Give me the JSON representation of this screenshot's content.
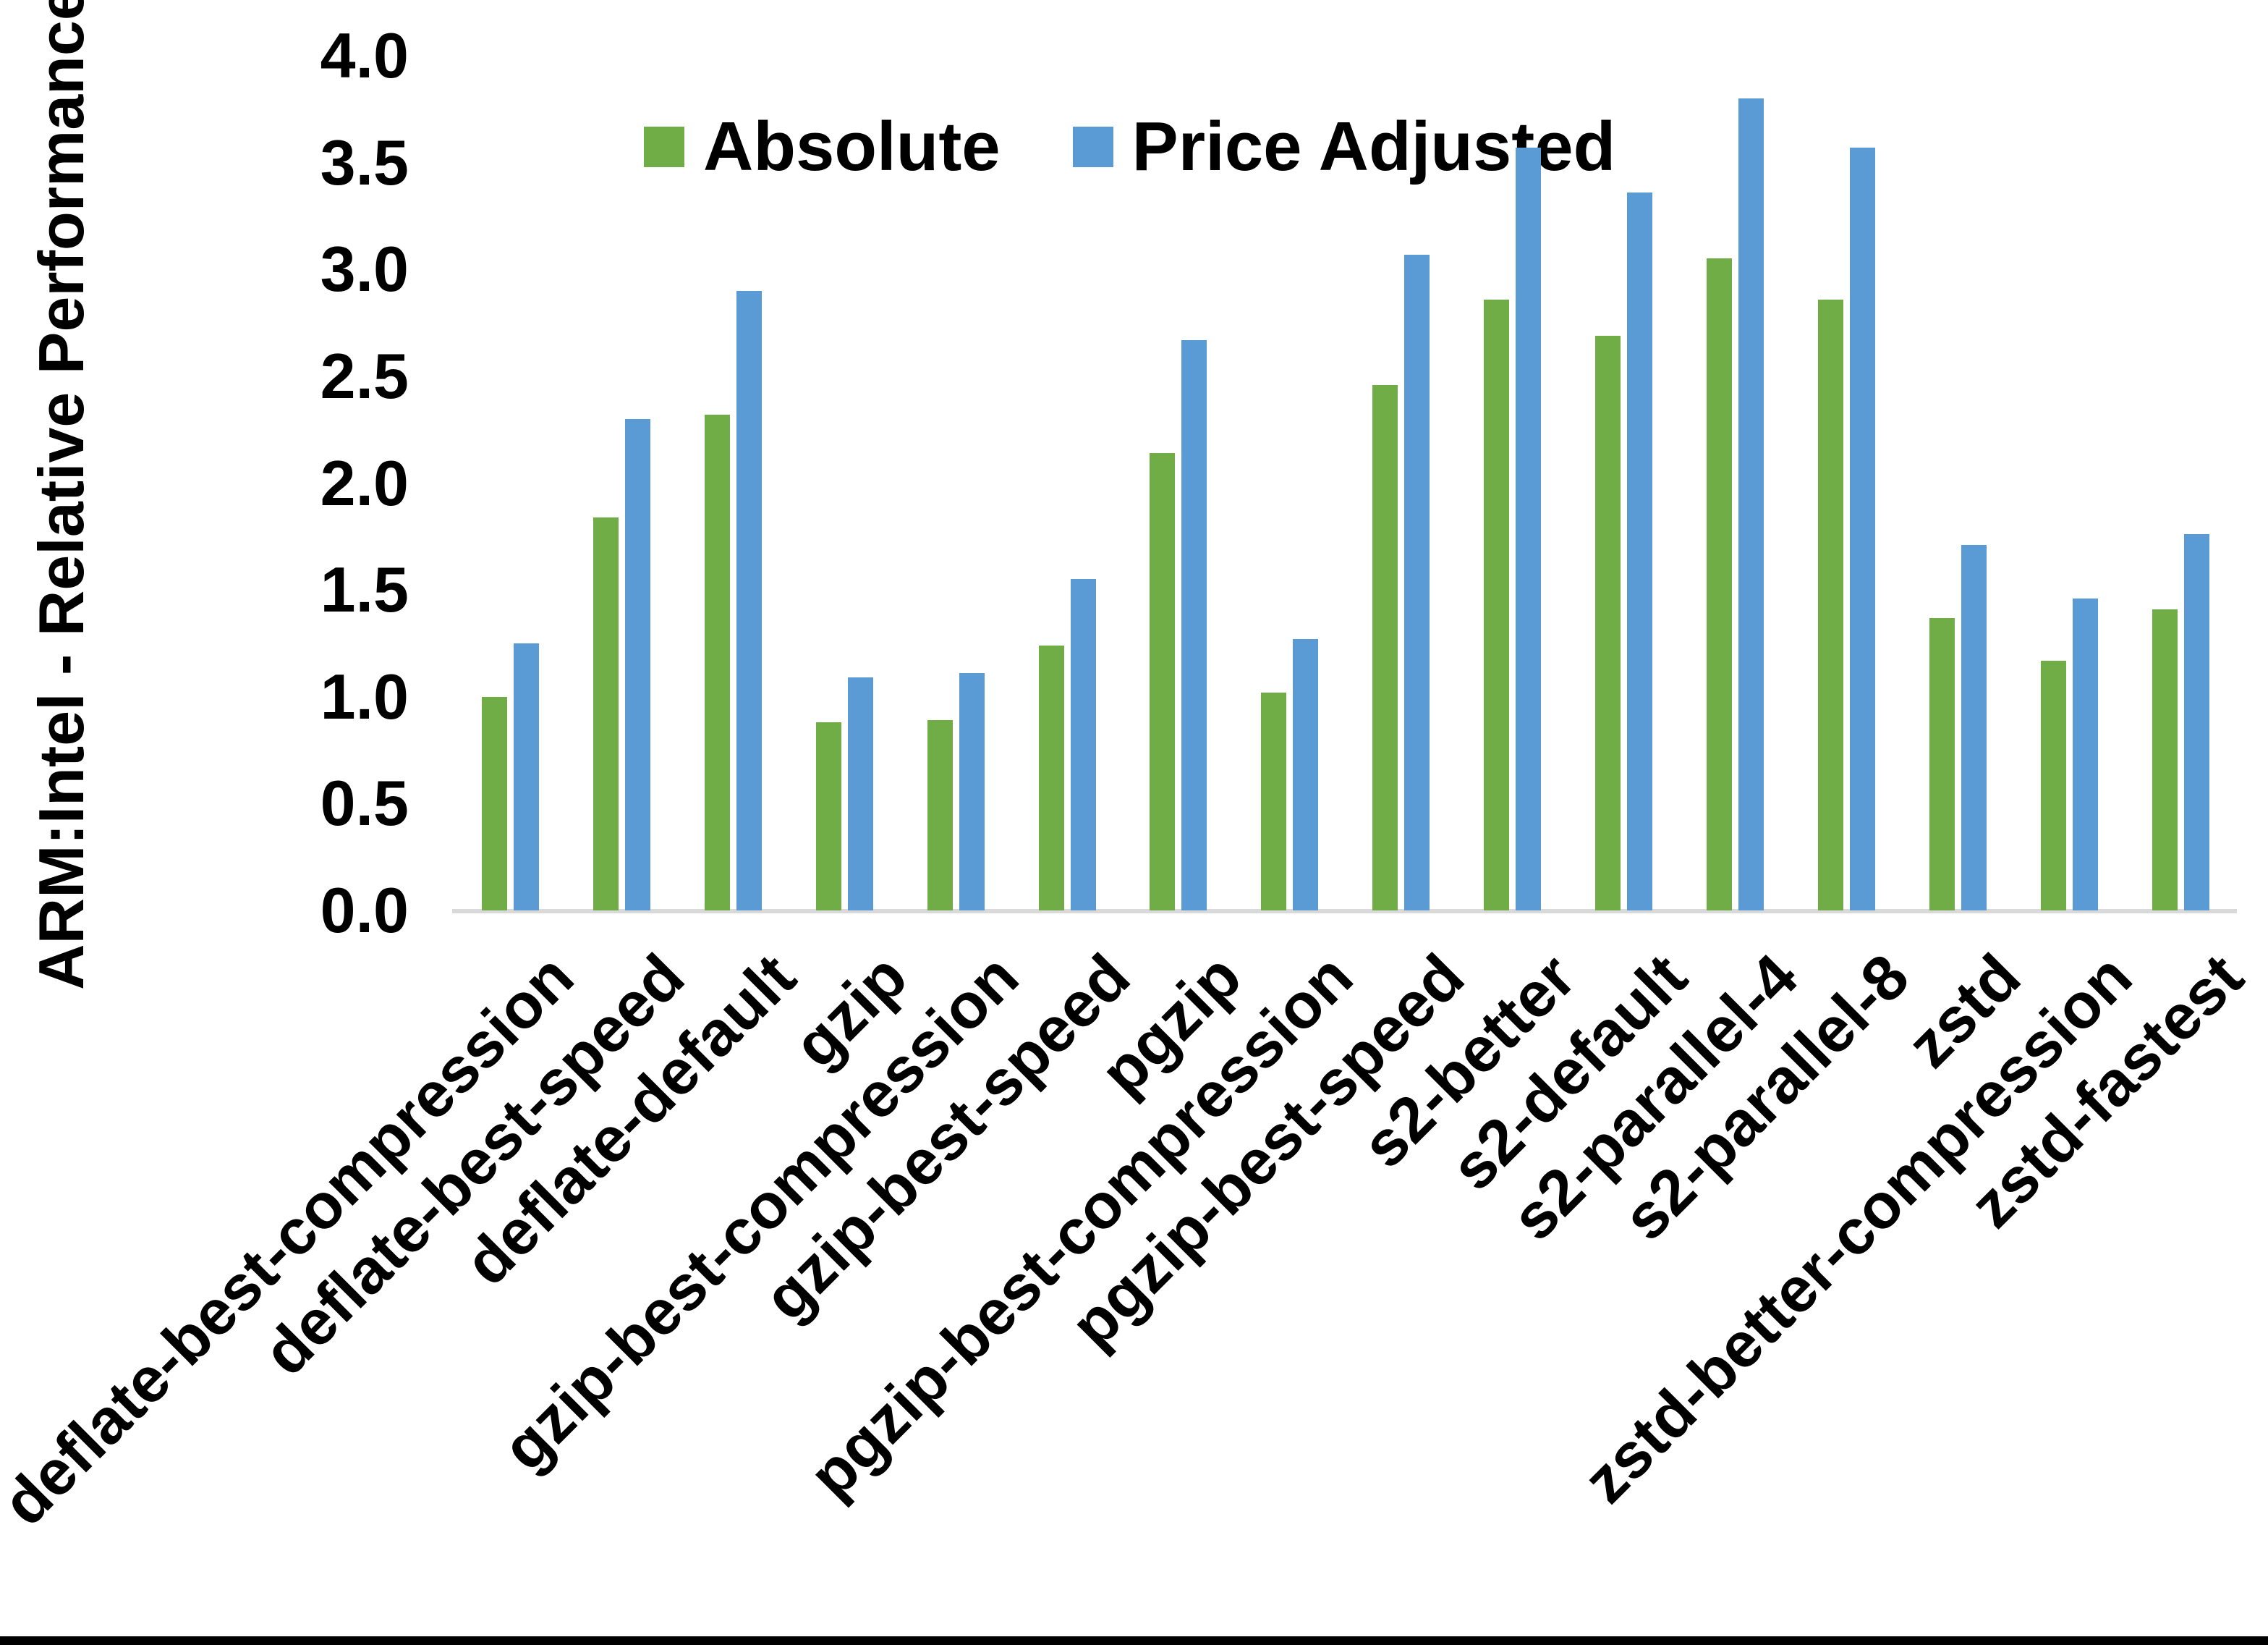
{
  "page": {
    "background": "#ffffff",
    "bottom_border_color": "#000000"
  },
  "chart_data": {
    "type": "bar",
    "title": "",
    "xlabel": "",
    "ylabel": "ARM:Intel - Relative Performance",
    "ylim": [
      0.0,
      4.0
    ],
    "ytick_step": 0.5,
    "yticks": [
      "0.0",
      "0.5",
      "1.0",
      "1.5",
      "2.0",
      "2.5",
      "3.0",
      "3.5",
      "4.0"
    ],
    "grid": false,
    "legend_position": "top-center",
    "axis_line_color": "#d9d9d9",
    "text_color": "#000000",
    "categories": [
      "deflate-best-compression",
      "deflate-best-speed",
      "deflate-default",
      "gzip",
      "gzip-best-compression",
      "gzip-best-speed",
      "pgzip",
      "pgzip-best-compression",
      "pgzip-best-speed",
      "s2-better",
      "s2-default",
      "s2-parallel-4",
      "s2-parallel-8",
      "zstd",
      "zstd-better-compression",
      "zstd-fastest"
    ],
    "series": [
      {
        "name": "Absolute",
        "color": "#70AD47",
        "values": [
          1.0,
          1.84,
          2.32,
          0.88,
          0.89,
          1.24,
          2.14,
          1.02,
          2.46,
          2.86,
          2.69,
          3.05,
          2.86,
          1.37,
          1.17,
          1.41
        ]
      },
      {
        "name": "Price Adjusted",
        "color": "#5B9BD5",
        "values": [
          1.25,
          2.3,
          2.9,
          1.09,
          1.11,
          1.55,
          2.67,
          1.27,
          3.07,
          3.57,
          3.36,
          3.8,
          3.57,
          1.71,
          1.46,
          1.76
        ]
      }
    ]
  }
}
